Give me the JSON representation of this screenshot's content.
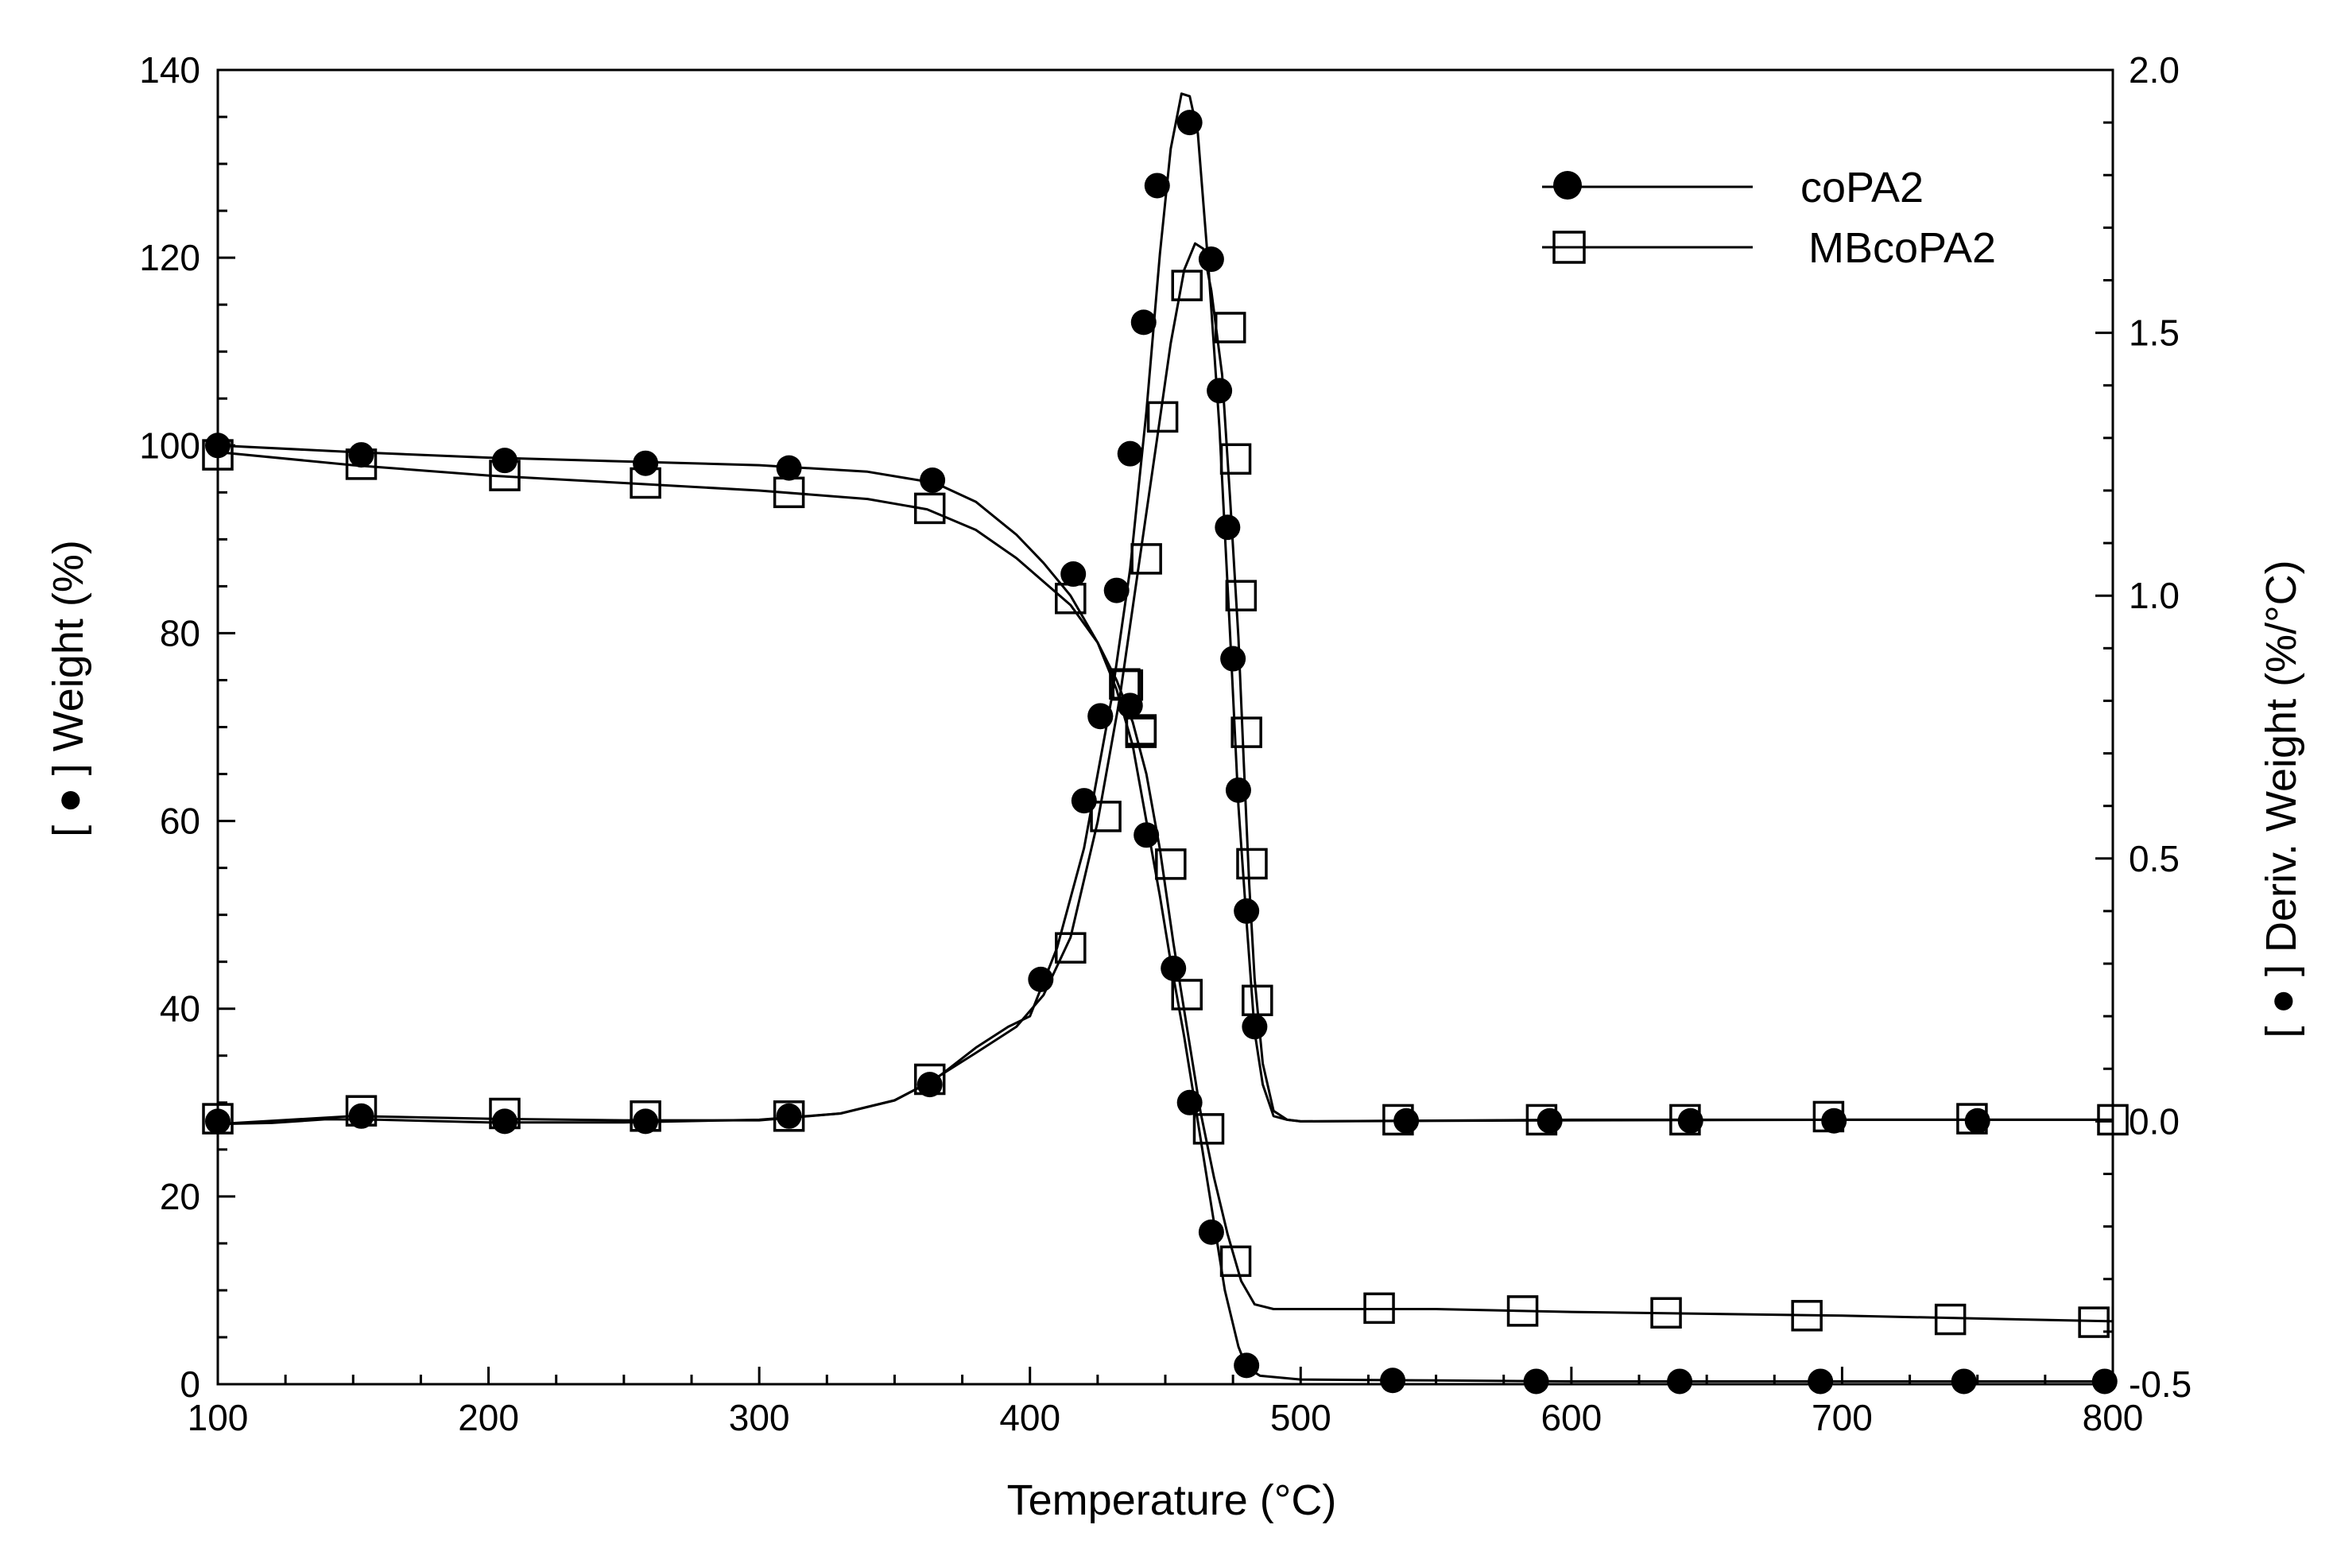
{
  "chart_data": {
    "type": "scatter",
    "title": "",
    "xlabel": "Temperature (°C)",
    "ylabel_left": "[ ● ] Weight (%)",
    "ylabel_right": "[ ● ] Deriv. Weight (%/°C)",
    "xlim": [
      100,
      800
    ],
    "ylim_left": [
      0,
      140
    ],
    "ylim_right": [
      -0.5,
      2.0
    ],
    "x_ticks": [
      100,
      200,
      300,
      400,
      500,
      600,
      700,
      800
    ],
    "y_left_ticks": [
      0,
      20,
      40,
      60,
      80,
      100,
      120,
      140
    ],
    "y_right_ticks": [
      "-0.5",
      "0.0",
      "0.5",
      "1.0",
      "1.5",
      "2.0"
    ],
    "legend_position": "top-right",
    "grid": false,
    "series": [
      {
        "name": "coPA2",
        "marker": "filled-circle",
        "kind": "weight",
        "axis": "left",
        "curve": [
          [
            100,
            100
          ],
          [
            150,
            99.3
          ],
          [
            200,
            98.7
          ],
          [
            250,
            98.3
          ],
          [
            300,
            97.9
          ],
          [
            340,
            97.2
          ],
          [
            365,
            96
          ],
          [
            380,
            94
          ],
          [
            395,
            90.5
          ],
          [
            405,
            87.5
          ],
          [
            415,
            84
          ],
          [
            425,
            79
          ],
          [
            432,
            74
          ],
          [
            438,
            68
          ],
          [
            443,
            60
          ],
          [
            448,
            52
          ],
          [
            452,
            45
          ],
          [
            457,
            37
          ],
          [
            462,
            28
          ],
          [
            467,
            19
          ],
          [
            472,
            10
          ],
          [
            477,
            4
          ],
          [
            480,
            1.8
          ],
          [
            485,
            0.9
          ],
          [
            500,
            0.5
          ],
          [
            550,
            0.4
          ],
          [
            600,
            0.3
          ],
          [
            700,
            0.3
          ],
          [
            800,
            0.3
          ]
        ],
        "markers": [
          [
            100,
            100
          ],
          [
            153,
            99
          ],
          [
            206,
            98.4
          ],
          [
            258,
            98.1
          ],
          [
            311,
            97.6
          ],
          [
            364,
            96.3
          ],
          [
            416,
            86.3
          ],
          [
            426,
            71.2
          ],
          [
            437,
            72.3
          ],
          [
            443,
            58.5
          ],
          [
            453,
            44.3
          ],
          [
            459,
            30
          ],
          [
            467,
            16.2
          ],
          [
            480,
            2
          ],
          [
            534,
            0.4
          ],
          [
            587,
            0.3
          ],
          [
            640,
            0.3
          ],
          [
            692,
            0.3
          ],
          [
            745,
            0.3
          ],
          [
            797,
            0.3
          ]
        ]
      },
      {
        "name": "MBcoPA2",
        "marker": "open-square",
        "kind": "weight",
        "axis": "left",
        "curve": [
          [
            100,
            99.3
          ],
          [
            150,
            97.9
          ],
          [
            200,
            96.8
          ],
          [
            250,
            96
          ],
          [
            300,
            95.2
          ],
          [
            340,
            94.3
          ],
          [
            362,
            93.2
          ],
          [
            380,
            91
          ],
          [
            395,
            88
          ],
          [
            405,
            85.5
          ],
          [
            415,
            83
          ],
          [
            425,
            79
          ],
          [
            432,
            75
          ],
          [
            438,
            70.5
          ],
          [
            443,
            65
          ],
          [
            448,
            57
          ],
          [
            453,
            47
          ],
          [
            458,
            38
          ],
          [
            463,
            29
          ],
          [
            468,
            22
          ],
          [
            473,
            16
          ],
          [
            478,
            11
          ],
          [
            483,
            8.5
          ],
          [
            490,
            8
          ],
          [
            550,
            8
          ],
          [
            600,
            7.7
          ],
          [
            700,
            7.3
          ],
          [
            800,
            6.7
          ]
        ],
        "markers": [
          [
            100,
            99
          ],
          [
            153,
            98
          ],
          [
            206,
            96.8
          ],
          [
            258,
            96
          ],
          [
            311,
            95
          ],
          [
            363,
            93.3
          ],
          [
            415,
            83.7
          ],
          [
            435,
            74.6
          ],
          [
            441,
            69.7
          ],
          [
            452,
            55.4
          ],
          [
            458,
            41.5
          ],
          [
            466,
            27.2
          ],
          [
            476,
            13.1
          ],
          [
            529,
            8.1
          ],
          [
            582,
            7.8
          ],
          [
            635,
            7.6
          ],
          [
            687,
            7.3
          ],
          [
            740,
            6.9
          ],
          [
            793,
            6.6
          ]
        ]
      },
      {
        "name": "coPA2",
        "marker": "filled-circle",
        "kind": "derivative",
        "axis": "right",
        "curve": [
          [
            100,
            -0.005
          ],
          [
            120,
            -0.003
          ],
          [
            140,
            0.004
          ],
          [
            160,
            0.003
          ],
          [
            200,
            -0.002
          ],
          [
            250,
            -0.002
          ],
          [
            300,
            0.003
          ],
          [
            330,
            0.015
          ],
          [
            350,
            0.04
          ],
          [
            365,
            0.08
          ],
          [
            380,
            0.14
          ],
          [
            392,
            0.18
          ],
          [
            400,
            0.2
          ],
          [
            410,
            0.33
          ],
          [
            420,
            0.52
          ],
          [
            430,
            0.8
          ],
          [
            437,
            1.05
          ],
          [
            443,
            1.35
          ],
          [
            448,
            1.65
          ],
          [
            452,
            1.85
          ],
          [
            456,
            1.955
          ],
          [
            459,
            1.95
          ],
          [
            462,
            1.88
          ],
          [
            466,
            1.62
          ],
          [
            470,
            1.32
          ],
          [
            474,
            0.92
          ],
          [
            477,
            0.6
          ],
          [
            480,
            0.38
          ],
          [
            483,
            0.17
          ],
          [
            486,
            0.07
          ],
          [
            490,
            0.01
          ],
          [
            495,
            0.003
          ],
          [
            500,
            0
          ],
          [
            600,
            0.002
          ],
          [
            700,
            0.003
          ],
          [
            800,
            0.003
          ]
        ],
        "markers": [
          [
            100,
            0
          ],
          [
            153,
            0.01
          ],
          [
            206,
            0
          ],
          [
            258,
            0
          ],
          [
            311,
            0.01
          ],
          [
            363,
            0.07
          ],
          [
            404,
            0.27
          ],
          [
            420,
            0.61
          ],
          [
            426,
            0.77
          ],
          [
            432,
            1.01
          ],
          [
            437,
            1.27
          ],
          [
            442,
            1.52
          ],
          [
            447,
            1.78
          ],
          [
            459,
            1.9
          ],
          [
            467,
            1.64
          ],
          [
            470,
            1.39
          ],
          [
            473,
            1.13
          ],
          [
            475,
            0.88
          ],
          [
            477,
            0.63
          ],
          [
            480,
            0.4
          ],
          [
            483,
            0.18
          ],
          [
            539,
            0.001
          ],
          [
            592,
            0.001
          ],
          [
            644,
            0.001
          ],
          [
            697,
            0.001
          ],
          [
            750,
            0.001
          ]
        ]
      },
      {
        "name": "MBcoPA2",
        "marker": "open-square",
        "kind": "derivative",
        "axis": "right",
        "curve": [
          [
            100,
            -0.005
          ],
          [
            150,
            0.01
          ],
          [
            200,
            0.005
          ],
          [
            250,
            0.002
          ],
          [
            300,
            0.002
          ],
          [
            330,
            0.015
          ],
          [
            350,
            0.04
          ],
          [
            363,
            0.075
          ],
          [
            380,
            0.13
          ],
          [
            395,
            0.18
          ],
          [
            405,
            0.24
          ],
          [
            415,
            0.35
          ],
          [
            425,
            0.57
          ],
          [
            433,
            0.8
          ],
          [
            440,
            1.05
          ],
          [
            447,
            1.3
          ],
          [
            452,
            1.48
          ],
          [
            457,
            1.62
          ],
          [
            461,
            1.67
          ],
          [
            464,
            1.66
          ],
          [
            467,
            1.58
          ],
          [
            471,
            1.42
          ],
          [
            474,
            1.18
          ],
          [
            477,
            0.92
          ],
          [
            479,
            0.68
          ],
          [
            481,
            0.45
          ],
          [
            483,
            0.27
          ],
          [
            486,
            0.11
          ],
          [
            490,
            0.02
          ],
          [
            495,
            0.003
          ],
          [
            500,
            0
          ],
          [
            600,
            0.003
          ],
          [
            700,
            0.003
          ],
          [
            800,
            0.003
          ]
        ],
        "markers": [
          [
            100,
            0.005
          ],
          [
            153,
            0.02
          ],
          [
            206,
            0.015
          ],
          [
            258,
            0.01
          ],
          [
            311,
            0.01
          ],
          [
            363,
            0.08
          ],
          [
            415,
            0.33
          ],
          [
            428,
            0.58
          ],
          [
            436,
            0.83
          ],
          [
            441,
            0.74
          ],
          [
            443,
            1.07
          ],
          [
            449,
            1.34
          ],
          [
            458,
            1.59
          ],
          [
            474,
            1.51
          ],
          [
            476,
            1.26
          ],
          [
            478,
            1.0
          ],
          [
            480,
            0.74
          ],
          [
            482,
            0.49
          ],
          [
            484,
            0.23
          ],
          [
            536,
            0.003
          ],
          [
            589,
            0.003
          ],
          [
            642,
            0.003
          ],
          [
            695,
            0.009
          ],
          [
            748,
            0.005
          ],
          [
            800,
            0.003
          ]
        ]
      }
    ]
  }
}
